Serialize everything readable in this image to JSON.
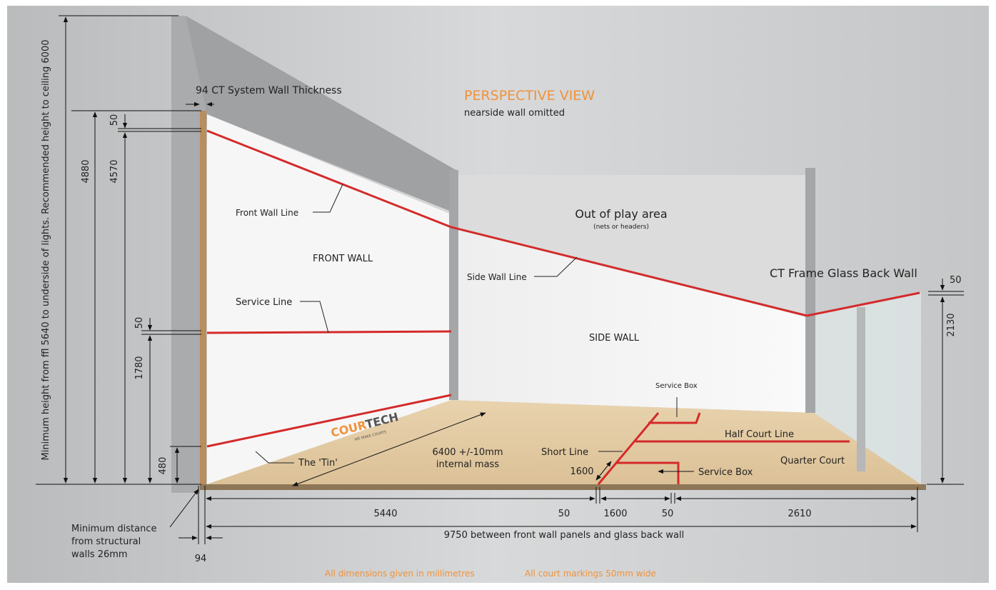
{
  "title": "PERSPECTIVE VIEW",
  "subtitle": "nearside wall omitted",
  "wall_thickness": "94 CT System Wall Thickness",
  "height_note": "Minimum height from ffl 5640 to underside of lights. Recommended height to ceiling 6000",
  "vertical_dims": [
    "4880",
    "4570",
    "50",
    "50",
    "1780",
    "480"
  ],
  "back_wall_dims": [
    "50",
    "2130"
  ],
  "floor_dims": [
    "5440",
    "50",
    "1600",
    "50",
    "2610"
  ],
  "total_length": "9750 between front wall panels and glass back wall",
  "short_line_dim": "1600",
  "court_width": [
    "6400 +/-10mm",
    "internal mass"
  ],
  "wall_offset": "94",
  "distance_note": [
    "Minimum distance",
    "from structural",
    "walls 26mm"
  ],
  "labels": {
    "front_wall_line": "Front Wall Line",
    "front_wall": "FRONT WALL",
    "service_line": "Service Line",
    "out_of_play": "Out of play area",
    "out_of_play_note": "(nets or headers)",
    "side_wall_line": "Side Wall Line",
    "side_wall": "SIDE WALL",
    "back_wall": "CT Frame Glass Back Wall",
    "service_box_top": "Service Box",
    "half_court_line": "Half Court Line",
    "short_line": "Short Line",
    "quarter_court": "Quarter Court",
    "service_box_bottom": "Service Box",
    "tin": "The 'Tin'"
  },
  "logo": [
    "COUR",
    "TECH"
  ],
  "logo_tagline": "WE MAKE COURTS",
  "footer": [
    "All dimensions given in millimetres",
    "All court markings 50mm wide"
  ]
}
